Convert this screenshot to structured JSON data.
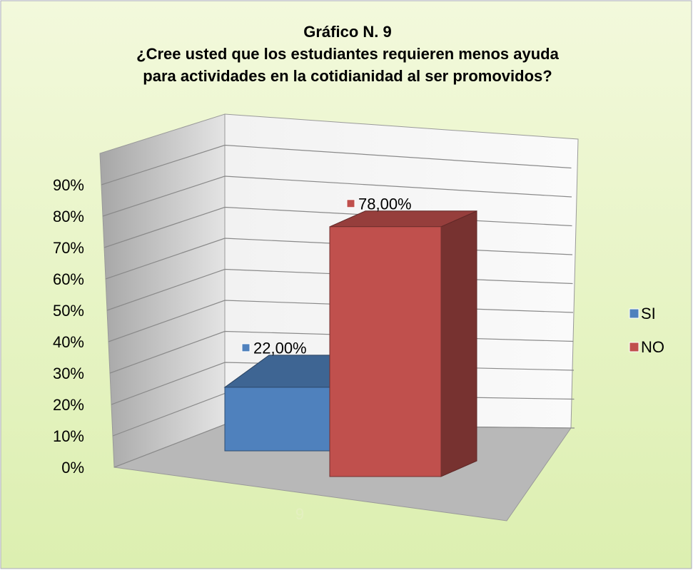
{
  "chart_data": {
    "type": "bar3d",
    "title": [
      "Gráfico N. 9",
      "¿Cree usted que los estudiantes requieren menos ayuda",
      "para actividades en la cotidianidad al ser promovidos?"
    ],
    "categories": [
      "9"
    ],
    "series": [
      {
        "name": "SI",
        "color": "#4f81bd",
        "values": [
          22
        ],
        "value_labels": [
          "22,00%"
        ]
      },
      {
        "name": "NO",
        "color": "#c0504d",
        "values": [
          78
        ],
        "value_labels": [
          "78,00%"
        ]
      }
    ],
    "ylim": [
      0,
      100
    ],
    "yticks": [
      {
        "value": 0,
        "label": "0%"
      },
      {
        "value": 10,
        "label": "10%"
      },
      {
        "value": 20,
        "label": "20%"
      },
      {
        "value": 30,
        "label": "30%"
      },
      {
        "value": 40,
        "label": "40%"
      },
      {
        "value": 50,
        "label": "50%"
      },
      {
        "value": 60,
        "label": "60%"
      },
      {
        "value": 70,
        "label": "70%"
      },
      {
        "value": 80,
        "label": "80%"
      },
      {
        "value": 90,
        "label": "90%"
      }
    ],
    "grid": true,
    "legend": "right"
  }
}
